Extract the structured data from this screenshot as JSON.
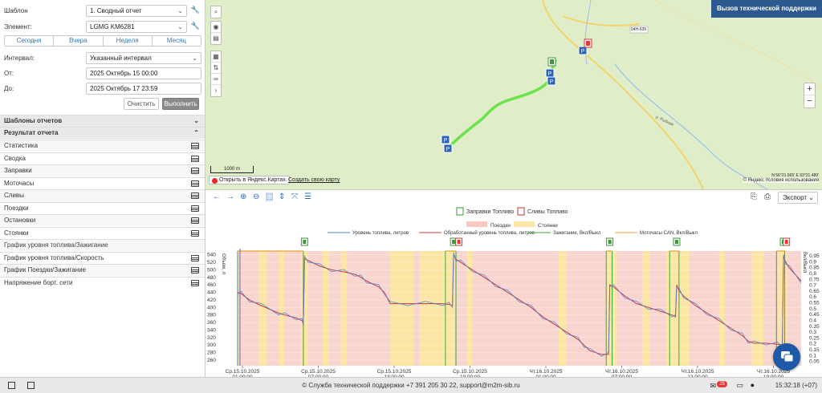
{
  "left": {
    "template_label": "Шаблон",
    "template_value": "1. Сводный отчет",
    "element_label": "Элемент:",
    "element_value": "LGMG KM6281",
    "periods": [
      "Сегодня",
      "Вчера",
      "Неделя",
      "Месяц"
    ],
    "interval_label": "Интервал:",
    "interval_value": "Указанный интервал",
    "from_label": "От:",
    "from_value": "2025 Октябрь 15 00:00",
    "to_label": "До:",
    "to_value": "2025 Октябрь 17 23:59",
    "clear_label": "Очистить",
    "run_label": "Выполнить",
    "report_templates": "Шаблоны отчетов",
    "report_result": "Результат отчета",
    "items": [
      "Статистика",
      "Сводка",
      "Заправки",
      "Моточасы",
      "Сливы",
      "Поездки",
      "Остановки",
      "Стоянки"
    ],
    "chart_items": [
      "График уровня топлива/Зажигание",
      "График уровня топлива/Скорость",
      "График Поездки/Зажигание",
      "Напряжение борт. сети"
    ]
  },
  "map": {
    "support_button": "Вызов технической поддержки",
    "scale": "1000 m",
    "open_yandex": "Открыть в Яндекс.Картах",
    "create_map": "Создать свою карту",
    "copyright": "© Яндекс Условия использования",
    "coords": "N 56°21.565' E 93°21.489'",
    "road_label": "04Н-635",
    "road_label2": "р. Рыбная"
  },
  "chart_toolbar": {
    "export_label": "Экспорт"
  },
  "status": {
    "support_text": "© Служба технической поддержки +7 391 205 30 22, support@m2m-sib.ru",
    "badge": "25",
    "clock": "15:32:18 (+07)"
  },
  "chart_data": {
    "type": "line",
    "legend_markers": [
      "Заправки Топливо",
      "Сливы Топливо"
    ],
    "legend_bands": [
      "Поездки",
      "Стоянки"
    ],
    "series_names": [
      "Уровень топлива, литров",
      "Обработанный уровень топлива, литров",
      "Зажигание, Вкл/Выкл",
      "Моточасы CAN, Вкл/Выкл"
    ],
    "ylabel_left": "Объем, л",
    "ylabel_right": "Вкл/Выкл",
    "yticks_left": [
      540,
      520,
      500,
      480,
      460,
      440,
      420,
      400,
      380,
      360,
      340,
      320,
      300,
      280,
      260
    ],
    "yticks_right": [
      0.95,
      0.9,
      0.85,
      0.8,
      0.75,
      0.7,
      0.65,
      0.6,
      0.55,
      0.5,
      0.45,
      0.4,
      0.35,
      0.3,
      0.25,
      0.2,
      0.15,
      0.1,
      0.05
    ],
    "xticks": [
      {
        "d": "Ср.15.10.2025",
        "t": "01:00:00"
      },
      {
        "d": "Ср.15.10.2025",
        "t": "07:00:00"
      },
      {
        "d": "Ср.15.10.2025",
        "t": "13:00:00"
      },
      {
        "d": "Ср.15.10.2025",
        "t": "19:00:00"
      },
      {
        "d": "Чт.16.10.2025",
        "t": "01:00:00"
      },
      {
        "d": "Чт.16.10.2025",
        "t": "07:00:00"
      },
      {
        "d": "Чт.16.10.2025",
        "t": "13:00:00"
      },
      {
        "d": "Чт.16.10.2025",
        "t": "19:00:00"
      }
    ],
    "x_hours": [
      0,
      48
    ],
    "ylim": [
      245,
      550
    ],
    "fuel_points": [
      [
        0,
        440
      ],
      [
        0.3,
        437
      ],
      [
        1,
        420
      ],
      [
        2,
        405
      ],
      [
        3.5,
        385
      ],
      [
        4,
        380
      ],
      [
        5,
        372
      ],
      [
        5.5,
        365
      ],
      [
        5.6,
        355
      ],
      [
        5.7,
        530
      ],
      [
        6,
        525
      ],
      [
        7,
        510
      ],
      [
        8,
        500
      ],
      [
        9,
        495
      ],
      [
        10,
        488
      ],
      [
        10.5,
        480
      ],
      [
        11,
        470
      ],
      [
        12,
        455
      ],
      [
        12.5,
        440
      ],
      [
        13,
        410
      ],
      [
        14.5,
        410
      ],
      [
        16,
        410
      ],
      [
        17.5,
        410
      ],
      [
        18,
        408
      ],
      [
        18.3,
        405
      ],
      [
        18.4,
        540
      ],
      [
        18.6,
        528
      ],
      [
        19,
        520
      ],
      [
        20,
        500
      ],
      [
        21,
        480
      ],
      [
        22,
        460
      ],
      [
        23,
        440
      ],
      [
        24,
        420
      ],
      [
        25,
        400
      ],
      [
        26,
        375
      ],
      [
        27,
        355
      ],
      [
        28,
        335
      ],
      [
        29,
        315
      ],
      [
        29.5,
        300
      ],
      [
        30,
        285
      ],
      [
        31,
        275
      ],
      [
        31.6,
        275
      ],
      [
        31.7,
        460
      ],
      [
        32,
        455
      ],
      [
        33,
        430
      ],
      [
        34,
        410
      ],
      [
        35,
        400
      ],
      [
        36,
        390
      ],
      [
        37,
        380
      ],
      [
        37.3,
        375
      ],
      [
        37.4,
        460
      ],
      [
        37.6,
        445
      ],
      [
        38,
        430
      ],
      [
        39,
        405
      ],
      [
        40,
        385
      ],
      [
        41,
        365
      ],
      [
        42,
        345
      ],
      [
        43,
        325
      ],
      [
        43.5,
        310
      ],
      [
        44,
        305
      ],
      [
        45,
        305
      ],
      [
        46,
        302
      ],
      [
        46.4,
        300
      ],
      [
        46.5,
        535
      ],
      [
        46.7,
        520
      ],
      [
        47,
        505
      ],
      [
        48,
        470
      ]
    ],
    "refuels_x": [
      5.7,
      18.4,
      31.7,
      37.4,
      46.5
    ],
    "drains_x": [
      18.3,
      46.2
    ],
    "stop_bands": [
      [
        1.8,
        2.5
      ],
      [
        3.5,
        4
      ],
      [
        5.4,
        6
      ],
      [
        7.2,
        7.8
      ],
      [
        8.8,
        9.3
      ],
      [
        13,
        15
      ],
      [
        15.5,
        18.5
      ],
      [
        19.5,
        20
      ],
      [
        27.3,
        28
      ],
      [
        31.4,
        32.3
      ],
      [
        34.5,
        35.1
      ],
      [
        36.5,
        38.5
      ],
      [
        41,
        41.5
      ],
      [
        43.8,
        44.8
      ],
      [
        46,
        46.8
      ]
    ],
    "ignition_on": [
      [
        0,
        5.6
      ],
      [
        17.7,
        18.6
      ],
      [
        31.4,
        31.9
      ],
      [
        36.8,
        37.6
      ],
      [
        45.9,
        46.6
      ]
    ]
  }
}
